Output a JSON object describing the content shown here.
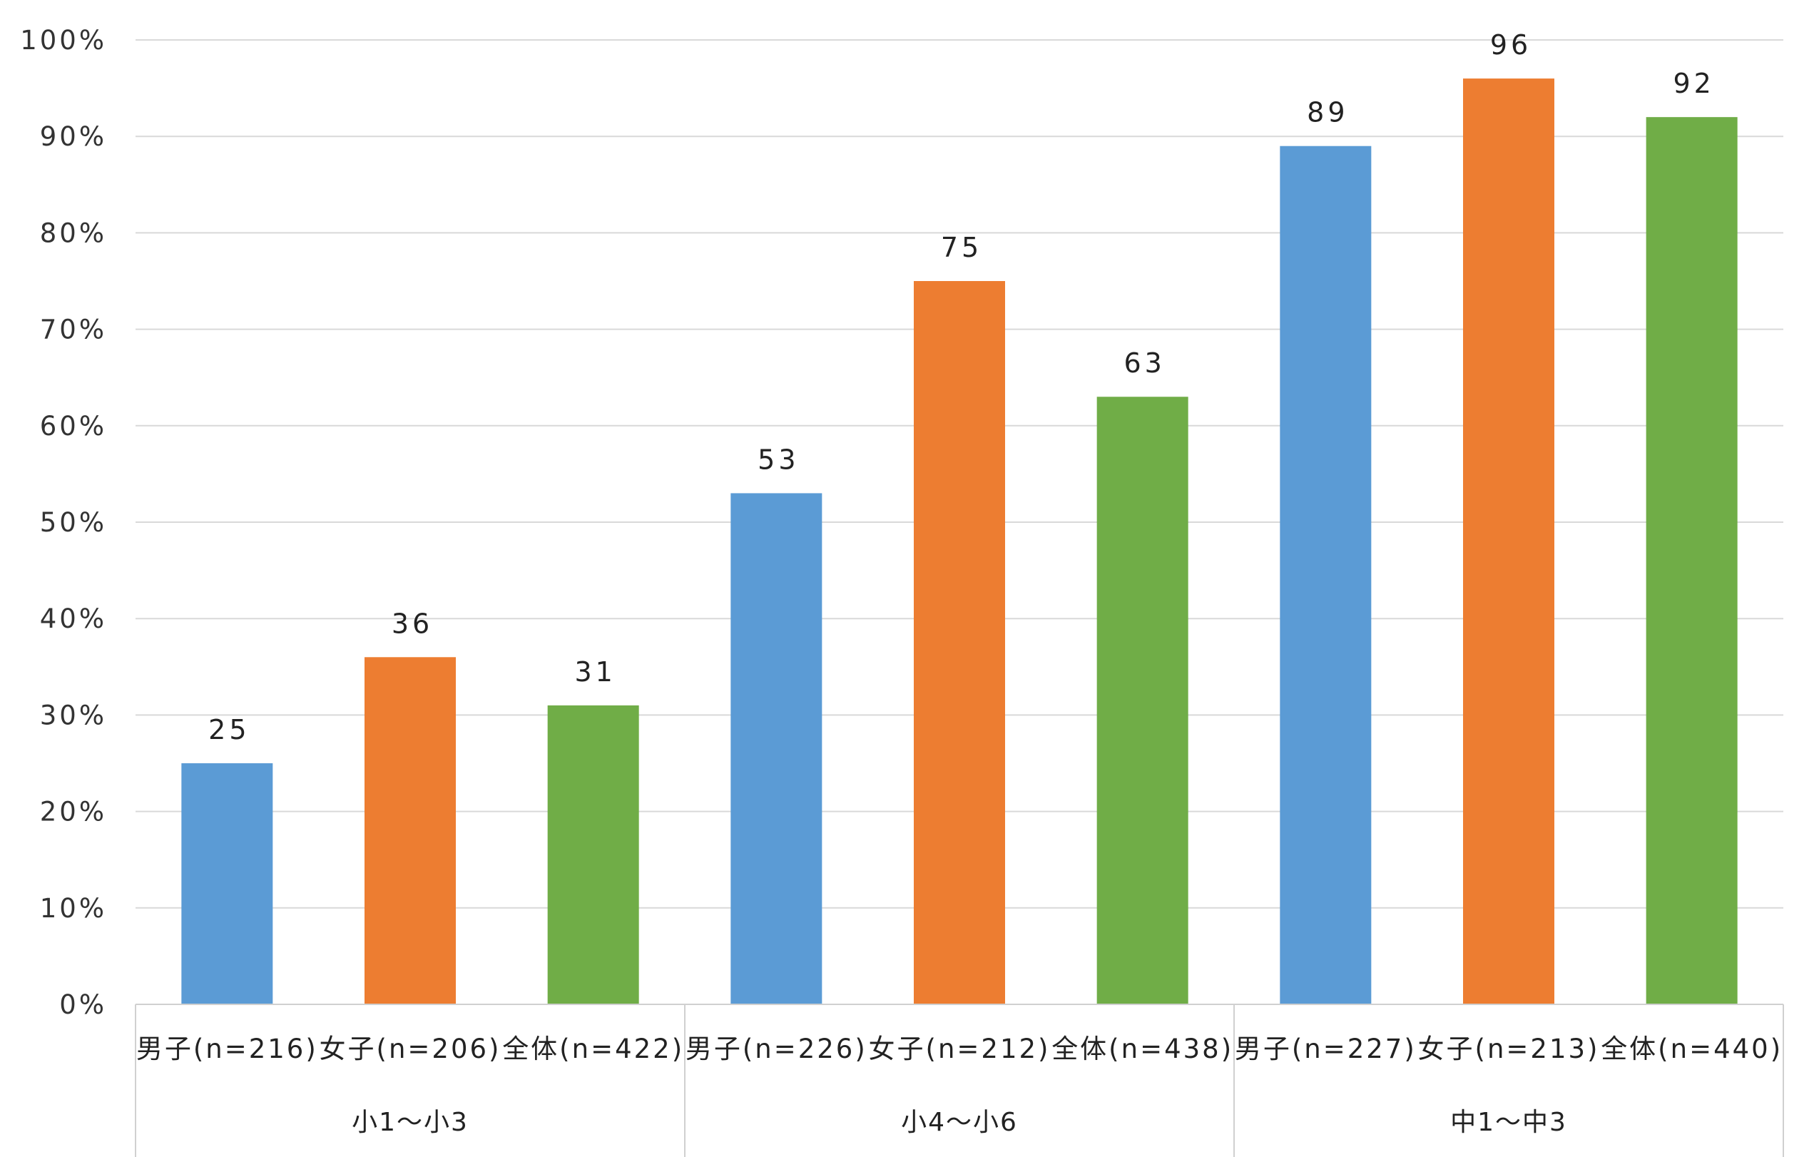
{
  "chart_data": {
    "type": "bar",
    "ylim": [
      0,
      100
    ],
    "ytick_labels": [
      "0%",
      "10%",
      "20%",
      "30%",
      "40%",
      "50%",
      "60%",
      "70%",
      "80%",
      "90%",
      "100%"
    ],
    "grid": true,
    "legend": "none",
    "groups": [
      {
        "label": "小1〜小3",
        "bars": [
          {
            "label": "男子(n=216)",
            "value": 25,
            "value_label": "25",
            "color": "#5b9bd5"
          },
          {
            "label": "女子(n=206)",
            "value": 36,
            "value_label": "36",
            "color": "#ed7d31"
          },
          {
            "label": "全体(n=422)",
            "value": 31,
            "value_label": "31",
            "color": "#70ad47"
          }
        ]
      },
      {
        "label": "小4〜小6",
        "bars": [
          {
            "label": "男子(n=226)",
            "value": 53,
            "value_label": "53",
            "color": "#5b9bd5"
          },
          {
            "label": "女子(n=212)",
            "value": 75,
            "value_label": "75",
            "color": "#ed7d31"
          },
          {
            "label": "全体(n=438)",
            "value": 63,
            "value_label": "63",
            "color": "#70ad47"
          }
        ]
      },
      {
        "label": "中1〜中3",
        "bars": [
          {
            "label": "男子(n=227)",
            "value": 89,
            "value_label": "89",
            "color": "#5b9bd5"
          },
          {
            "label": "女子(n=213)",
            "value": 96,
            "value_label": "96",
            "color": "#ed7d31"
          },
          {
            "label": "全体(n=440)",
            "value": 92,
            "value_label": "92",
            "color": "#70ad47"
          }
        ]
      }
    ]
  }
}
